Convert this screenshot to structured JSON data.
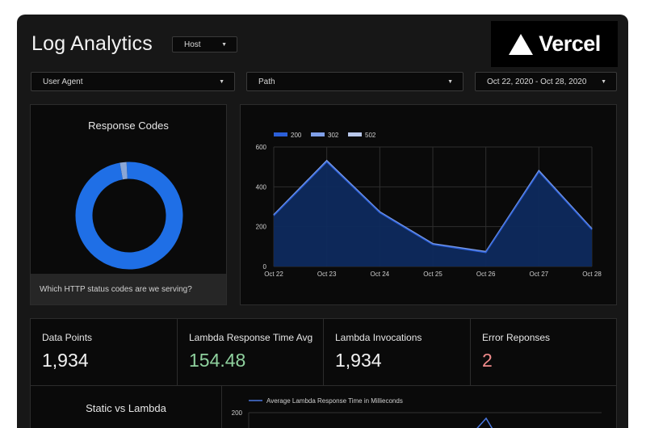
{
  "header": {
    "title": "Log Analytics"
  },
  "filters": {
    "host": "Host",
    "user_agent": "User Agent",
    "path": "Path",
    "date_range": "Oct 22, 2020 - Oct 28, 2020"
  },
  "logo": {
    "text": "Vercel"
  },
  "response_codes": {
    "title": "Response Codes",
    "footer": "Which HTTP status codes are we serving?",
    "slices": [
      {
        "code": "200",
        "share": 0.98,
        "color": "#1f6fe6"
      },
      {
        "code": "other",
        "share": 0.02,
        "color": "#8aa6d6"
      }
    ]
  },
  "chart_data": {
    "type": "area",
    "categories": [
      "Oct 22",
      "Oct 23",
      "Oct 24",
      "Oct 25",
      "Oct 26",
      "Oct 27",
      "Oct 28"
    ],
    "series": [
      {
        "name": "200",
        "values": [
          255,
          525,
          270,
          110,
          70,
          475,
          185
        ],
        "color": "#2b5fd9"
      },
      {
        "name": "302",
        "values": [
          260,
          532,
          275,
          115,
          75,
          482,
          190
        ],
        "color": "#7f9fe8"
      },
      {
        "name": "502",
        "values": [
          258,
          528,
          272,
          112,
          72,
          478,
          188
        ],
        "color": "#b9c8ea"
      }
    ],
    "ylim": [
      0,
      600
    ],
    "yticks": [
      0,
      200,
      400,
      600
    ],
    "legend": "top-left",
    "grid": true
  },
  "metrics": [
    {
      "label": "Data Points",
      "value": "1,934",
      "color": "#f2f2f2"
    },
    {
      "label": "Lambda Response Time Avg",
      "value": "154.48",
      "color": "#8fd19e"
    },
    {
      "label": "Lambda Invocations",
      "value": "1,934",
      "color": "#f2f2f2"
    },
    {
      "label": "Error Reponses",
      "value": "2",
      "color": "#f08b8b"
    }
  ],
  "static_vs_lambda": {
    "title": "Static vs Lambda"
  },
  "lambda_chart": {
    "legend": "Average Lambda Response Time in Millieconds",
    "first_tick": "200"
  }
}
